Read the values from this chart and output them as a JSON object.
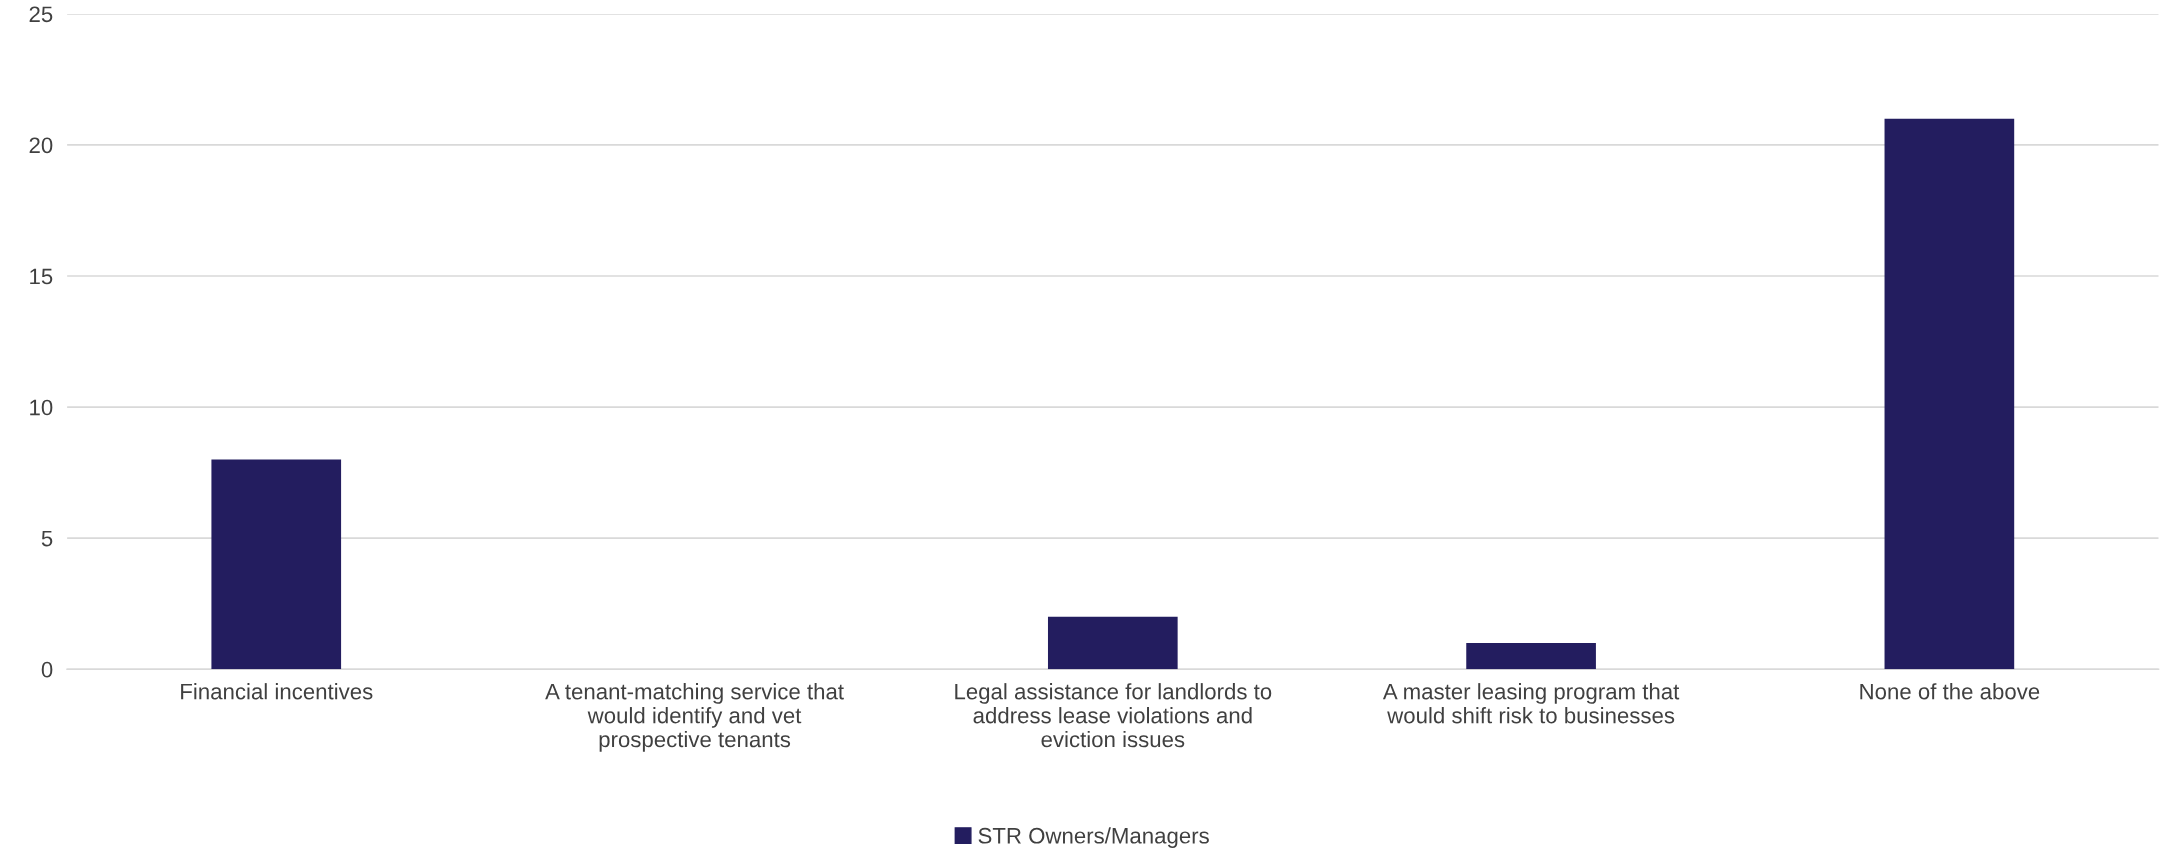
{
  "chart_data": {
    "type": "bar",
    "categories": [
      "Financial incentives",
      "A tenant-matching service that\nwould identify and vet\nprospective tenants",
      "Legal assistance for landlords to\naddress lease violations and\neviction issues",
      "A master leasing program that\nwould shift risk to businesses",
      "None of the above"
    ],
    "series": [
      {
        "name": "STR Owners/Managers",
        "color": "#231d5f",
        "values": [
          8,
          0,
          2,
          1,
          21
        ]
      }
    ],
    "ylim": [
      0,
      25
    ],
    "yticks": [
      0,
      5,
      10,
      15,
      20,
      25
    ],
    "grid": "y",
    "legend": "bottom"
  }
}
